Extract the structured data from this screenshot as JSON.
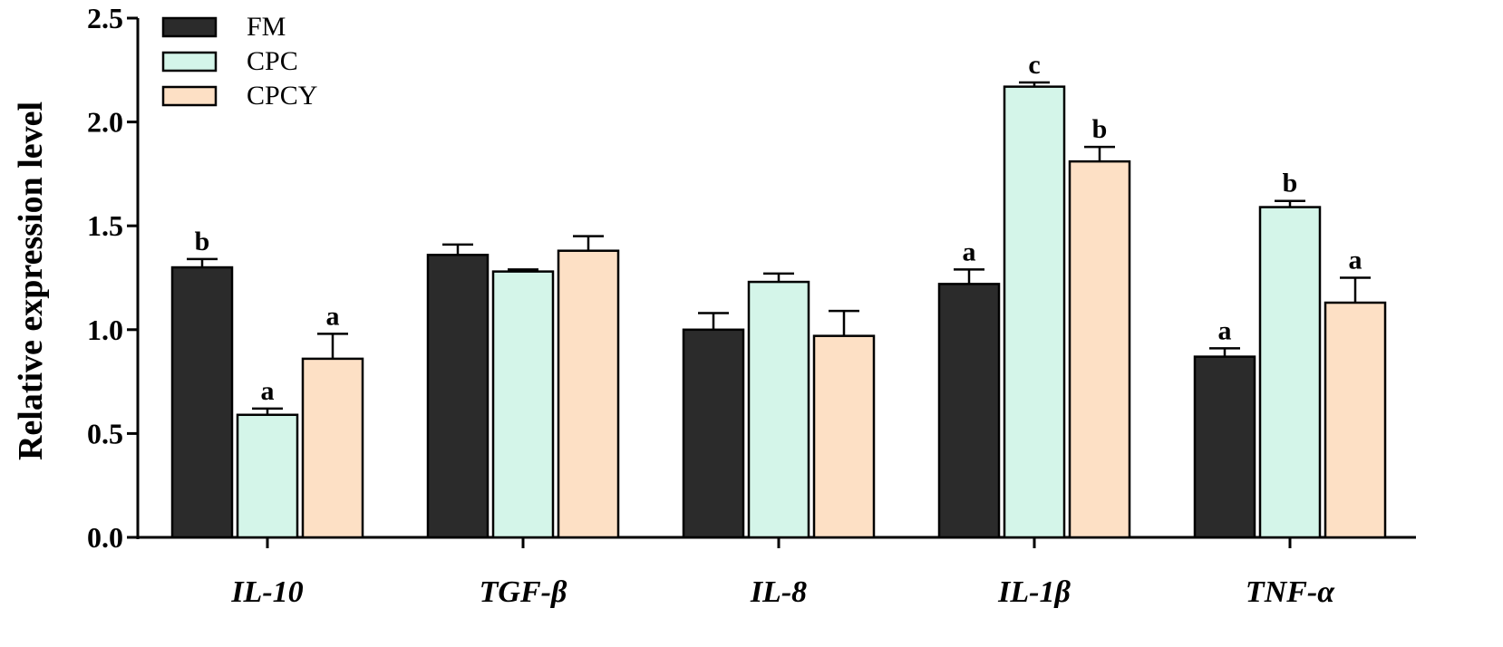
{
  "chart_data": {
    "type": "bar",
    "title": "",
    "xlabel": "",
    "ylabel": "Relative expression level",
    "ylim": [
      0,
      2.5
    ],
    "yticks": [
      "0.0",
      "0.5",
      "1.0",
      "1.5",
      "2.0",
      "2.5"
    ],
    "grid": false,
    "legend_position": "top-left",
    "categories": [
      "IL-10",
      "TGF-β",
      "IL-8",
      "IL-1β",
      "TNF-α"
    ],
    "series": [
      {
        "name": "FM",
        "color": "#2b2b2b",
        "values": [
          1.3,
          1.36,
          1.0,
          1.22,
          0.87
        ],
        "errors": [
          0.04,
          0.05,
          0.08,
          0.07,
          0.04
        ],
        "labels": [
          "b",
          "",
          "",
          "a",
          "a"
        ]
      },
      {
        "name": "CPC",
        "color": "#d4f5e9",
        "values": [
          0.59,
          1.28,
          1.23,
          2.17,
          1.59
        ],
        "errors": [
          0.03,
          0.01,
          0.04,
          0.02,
          0.03
        ],
        "labels": [
          "a",
          "",
          "",
          "c",
          "b"
        ]
      },
      {
        "name": "CPCY",
        "color": "#fde0c5",
        "values": [
          0.86,
          1.38,
          0.97,
          1.81,
          1.13
        ],
        "errors": [
          0.12,
          0.07,
          0.12,
          0.07,
          0.12
        ],
        "labels": [
          "a",
          "",
          "",
          "b",
          "a"
        ]
      }
    ]
  }
}
